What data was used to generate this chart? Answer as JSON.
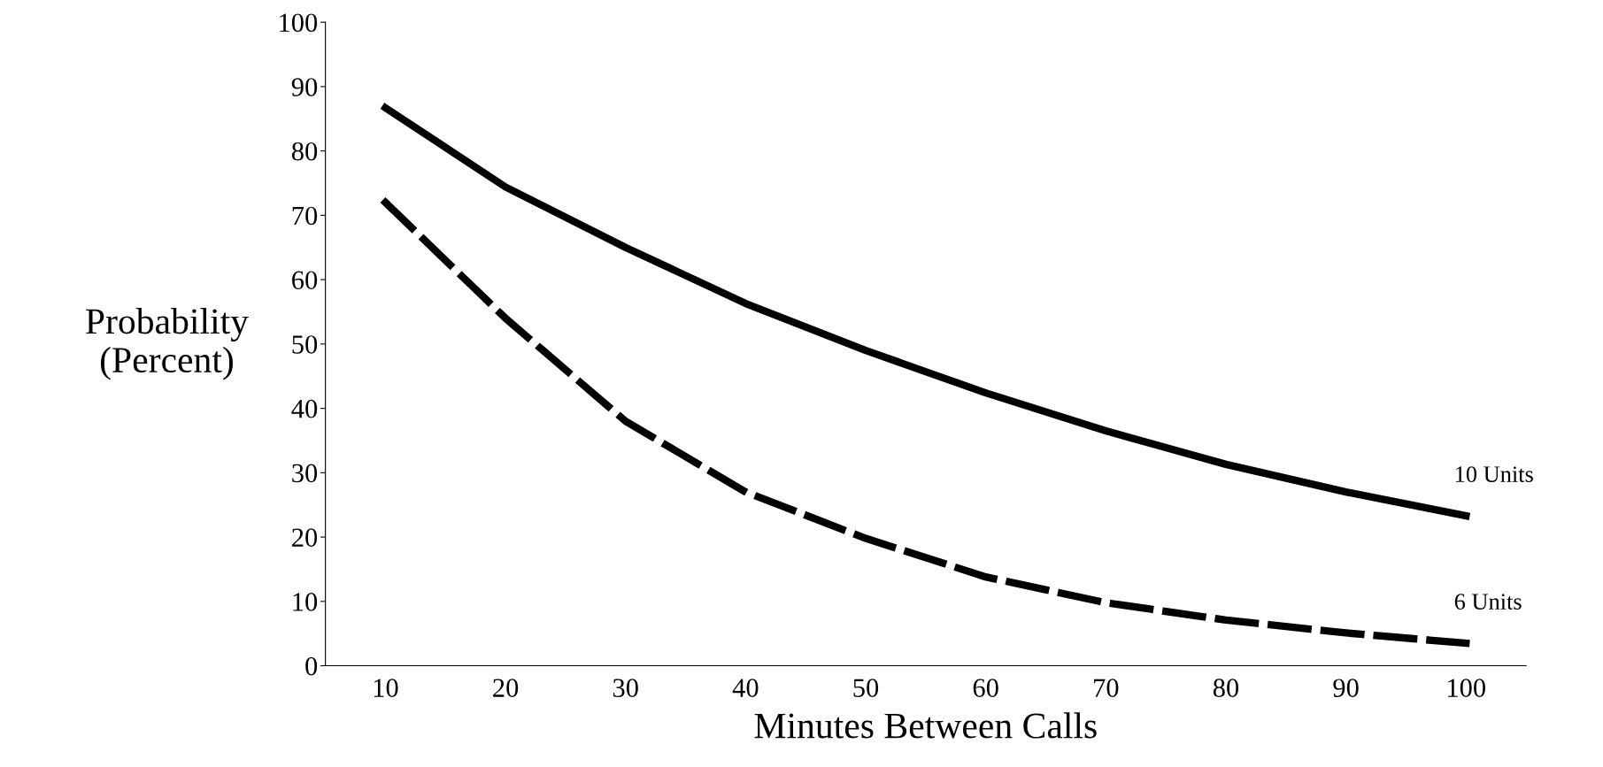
{
  "chart_data": {
    "type": "line",
    "xlabel": "Minutes Between Calls",
    "ylabel": "Probability\n(Percent)",
    "x": [
      10,
      20,
      30,
      40,
      50,
      60,
      70,
      80,
      90,
      100
    ],
    "series": [
      {
        "name": "10 Units",
        "color": "#000000",
        "line_style": "solid",
        "values": [
          86.7,
          74.4,
          65,
          56.3,
          49,
          42.4,
          36.5,
          31.3,
          27,
          23.3
        ]
      },
      {
        "name": "6 Units",
        "color": "#000000",
        "line_style": "dashed",
        "values": [
          72,
          54,
          38,
          27,
          19.8,
          13.8,
          9.8,
          7.1,
          5.1,
          3.5
        ]
      }
    ],
    "xlim": [
      5,
      105
    ],
    "ylim": [
      0,
      100
    ],
    "xticks": [
      10,
      20,
      30,
      40,
      50,
      60,
      70,
      80,
      90,
      100
    ],
    "yticks": [
      0,
      10,
      20,
      30,
      40,
      50,
      60,
      70,
      80,
      90,
      100
    ],
    "grid": false,
    "legend": false,
    "marker": "none"
  }
}
